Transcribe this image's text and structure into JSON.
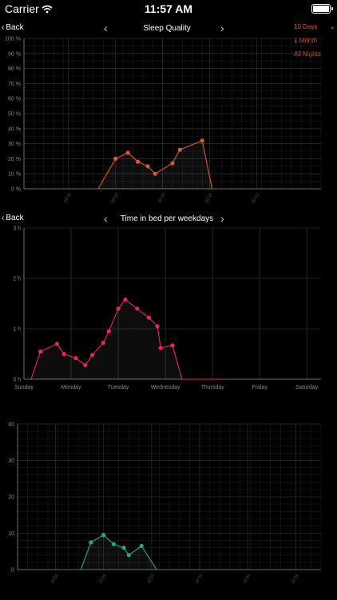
{
  "status": {
    "carrier": "Carrier",
    "time": "11:57 AM"
  },
  "nav1": {
    "back": "Back",
    "title": "Sleep Quality"
  },
  "nav2": {
    "back": "Back",
    "title": "Time in bed per weekdays"
  },
  "range_menu": {
    "options": [
      "10 Days",
      "1 Month",
      "All Nights"
    ],
    "selected": "10 Days"
  },
  "colors": {
    "sleep_quality": "#e0582a",
    "time_in_bed": "#e8245a",
    "third": "#1fae7a",
    "grid": "#2a2a2a",
    "axis": "#6e6e6e"
  },
  "chart_data": [
    {
      "type": "line",
      "ylim": [
        0,
        100
      ],
      "yticks": [
        "0 %",
        "10 %",
        "20 %",
        "30 %",
        "40 %",
        "50 %",
        "60 %",
        "70 %",
        "80 %",
        "90 %",
        "100 %"
      ],
      "xticks": [
        "12:12",
        "12:12",
        "12:12",
        "12:12",
        "12:12"
      ],
      "x": [
        0.3,
        0.37,
        0.42,
        0.46,
        0.5,
        0.53,
        0.6,
        0.63,
        0.72,
        0.76
      ],
      "y": [
        0,
        20,
        24,
        18,
        15,
        10,
        17,
        26,
        32,
        0
      ],
      "markers": [
        false,
        true,
        true,
        true,
        true,
        true,
        true,
        true,
        true,
        false
      ]
    },
    {
      "type": "line",
      "ylim": [
        0,
        3
      ],
      "yticks": [
        "0 h",
        "1 h",
        "2 h",
        "3 h"
      ],
      "xticks": [
        "Sunday",
        "Monday",
        "Tuesday",
        "Wednesday",
        "Thursday",
        "Friday",
        "Saturday"
      ],
      "x": [
        0.15,
        0.35,
        0.7,
        0.85,
        1.1,
        1.3,
        1.45,
        1.68,
        1.8,
        2.0,
        2.15,
        2.4,
        2.65,
        2.83,
        2.9,
        3.15,
        3.35,
        4.2
      ],
      "y": [
        0,
        0.55,
        0.7,
        0.5,
        0.42,
        0.28,
        0.48,
        0.72,
        0.95,
        1.4,
        1.58,
        1.4,
        1.22,
        1.05,
        0.62,
        0.67,
        0.0,
        0.0
      ],
      "markers": [
        false,
        true,
        true,
        true,
        true,
        true,
        true,
        true,
        true,
        true,
        true,
        true,
        true,
        true,
        true,
        true,
        false,
        false
      ]
    },
    {
      "type": "line",
      "ylim": [
        0,
        40
      ],
      "yticks": [
        "0",
        "10",
        "20",
        "30",
        "40"
      ],
      "xticks": [
        "12:12",
        "12:12",
        "12:12",
        "12:12",
        "12:12",
        "12:12"
      ],
      "x": [
        0.25,
        0.29,
        0.34,
        0.38,
        0.42,
        0.44,
        0.49,
        0.55
      ],
      "y": [
        0,
        7.5,
        9.5,
        7,
        6,
        4,
        6.5,
        0
      ],
      "markers": [
        false,
        true,
        true,
        true,
        true,
        true,
        true,
        false
      ]
    }
  ]
}
